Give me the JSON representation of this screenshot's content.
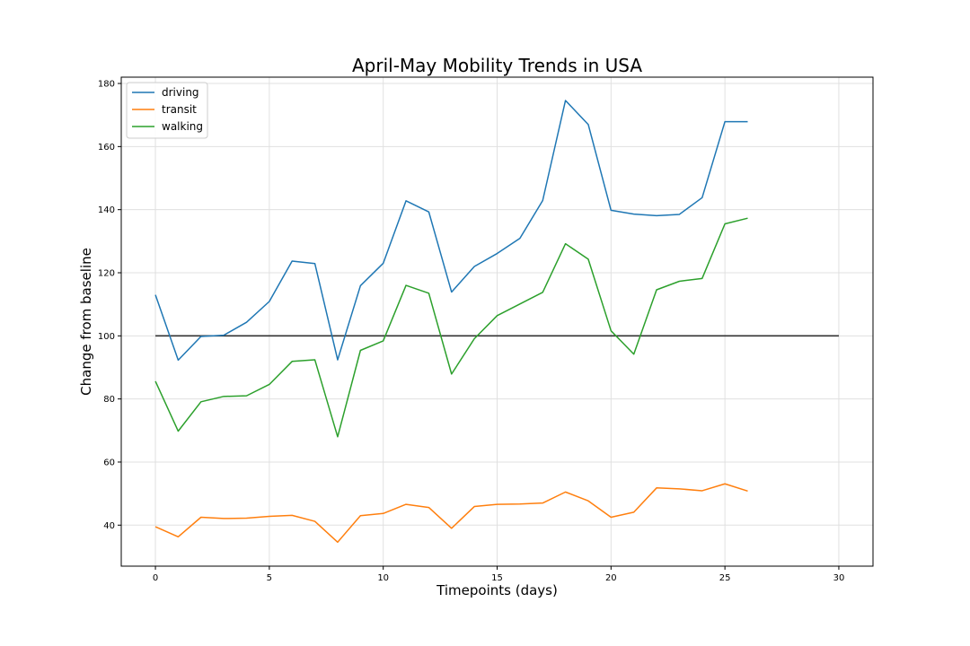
{
  "chart_data": {
    "type": "line",
    "title": "April-May Mobility Trends in USA",
    "xlabel": "Timepoints (days)",
    "ylabel": "Change from baseline",
    "xlim": [
      -1.5,
      31.5
    ],
    "ylim": [
      27,
      182
    ],
    "xticks": [
      0,
      5,
      10,
      15,
      20,
      25,
      30
    ],
    "yticks": [
      40,
      60,
      80,
      100,
      120,
      140,
      160,
      180
    ],
    "grid": true,
    "legend_position": "top-left",
    "x": [
      0,
      1,
      2,
      3,
      4,
      5,
      6,
      7,
      8,
      9,
      10,
      11,
      12,
      13,
      14,
      15,
      16,
      17,
      18,
      19,
      20,
      21,
      22,
      23,
      24,
      25,
      26
    ],
    "series": [
      {
        "name": "driving",
        "color": "#1f77b4",
        "values": [
          113.0,
          92.3,
          99.8,
          100.2,
          104.3,
          110.9,
          123.7,
          122.9,
          92.4,
          115.9,
          123.0,
          142.8,
          139.3,
          113.9,
          122.0,
          126.1,
          130.9,
          142.9,
          174.6,
          167.0,
          139.8,
          138.6,
          138.1,
          138.5,
          143.8,
          167.9,
          167.9
        ]
      },
      {
        "name": "transit",
        "color": "#ff7f0e",
        "values": [
          39.5,
          36.3,
          42.5,
          42.1,
          42.2,
          42.8,
          43.1,
          41.2,
          34.6,
          43.0,
          43.7,
          46.6,
          45.6,
          39.0,
          45.9,
          46.6,
          46.7,
          47.0,
          50.5,
          47.7,
          42.5,
          44.1,
          51.8,
          51.5,
          50.9,
          53.1,
          50.8
        ]
      },
      {
        "name": "walking",
        "color": "#2ca02c",
        "values": [
          85.6,
          69.8,
          79.1,
          80.8,
          81.0,
          84.6,
          91.9,
          92.4,
          68.0,
          95.4,
          98.4,
          116.0,
          113.5,
          87.9,
          99.1,
          106.4,
          110.1,
          113.8,
          129.2,
          124.3,
          101.6,
          94.2,
          114.6,
          117.3,
          118.2,
          135.5,
          137.3
        ]
      }
    ],
    "baseline": {
      "value": 100,
      "x_range": [
        0,
        30
      ],
      "color": "#333333"
    }
  }
}
